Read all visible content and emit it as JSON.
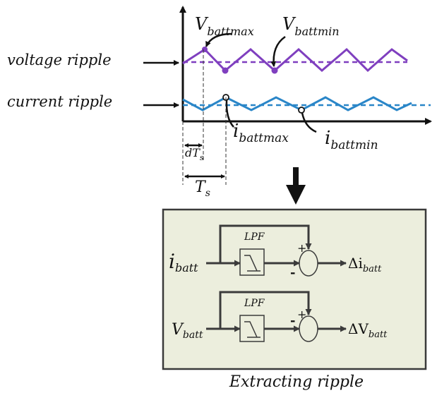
{
  "labels": {
    "voltage_ripple": "voltage ripple",
    "current_ripple": "current ripple",
    "v_batt_max": {
      "base": "V",
      "sub": "battmax"
    },
    "v_batt_min": {
      "base": "V",
      "sub": "battmin"
    },
    "i_batt_max": {
      "base": "i",
      "sub": "battmax"
    },
    "i_batt_min": {
      "base": "i",
      "sub": "battmin"
    },
    "d_ts": {
      "base": "dT",
      "sub": "s"
    },
    "ts": {
      "base": "T",
      "sub": "s"
    }
  },
  "block": {
    "caption": "Extracting ripple",
    "top": {
      "input": {
        "base": "i",
        "sub": "batt"
      },
      "lpf": "LPF",
      "plus": "+",
      "minus": "-",
      "output": {
        "base": "Δi",
        "sub": "batt"
      }
    },
    "bottom": {
      "input": {
        "base": "V",
        "sub": "batt"
      },
      "lpf": "LPF",
      "plus": "+",
      "minus": "-",
      "output": {
        "base": "ΔV",
        "sub": "batt"
      }
    }
  },
  "colors": {
    "voltage": "#7f3fbf",
    "current": "#2a86c8",
    "block_bg": "#eceedd",
    "block_border": "#3a3a3a",
    "arrow": "#111111"
  }
}
